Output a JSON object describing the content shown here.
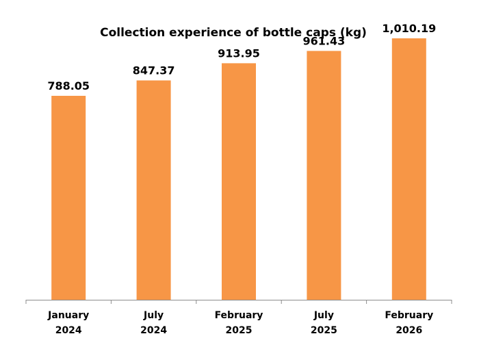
{
  "chart_data": {
    "type": "bar",
    "title": "Collection experience of bottle caps (kg)",
    "xlabel": "",
    "ylabel": "",
    "categories": [
      [
        "January",
        "2024"
      ],
      [
        "July",
        "2024"
      ],
      [
        "February",
        "2025"
      ],
      [
        "July",
        "2025"
      ],
      [
        "February",
        "2026"
      ]
    ],
    "values": [
      788.05,
      847.37,
      913.95,
      961.43,
      1010.19
    ],
    "value_labels": [
      "788.05",
      "847.37",
      "913.95",
      "961.43",
      "1,010.19"
    ],
    "ylim": [
      0,
      1100
    ],
    "grid": false,
    "legend": "none",
    "bar_color": "#F79646"
  }
}
